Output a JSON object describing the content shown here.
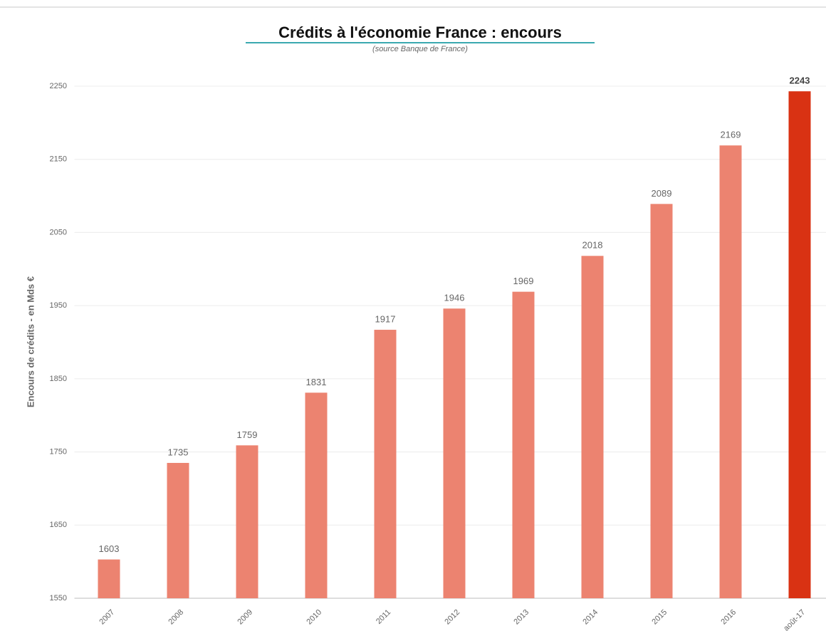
{
  "chart_data": {
    "type": "bar",
    "title": "Crédits à l'économie France : encours",
    "subtitle": "(source Banque de France)",
    "y_label": "Encours de crédits - en Mds €",
    "categories": [
      "2007",
      "2008",
      "2009",
      "2010",
      "2011",
      "2012",
      "2013",
      "2014",
      "2015",
      "2016",
      "août-17"
    ],
    "values": [
      1603,
      1735,
      1759,
      1831,
      1917,
      1946,
      1969,
      2018,
      2089,
      2169,
      2243
    ],
    "colors": [
      "#ec8370",
      "#ec8370",
      "#ec8370",
      "#ec8370",
      "#ec8370",
      "#ec8370",
      "#ec8370",
      "#ec8370",
      "#ec8370",
      "#ec8370",
      "#d93213"
    ],
    "ylim": [
      1550,
      2250
    ],
    "yticks": [
      1550,
      1650,
      1750,
      1850,
      1950,
      2050,
      2150,
      2250
    ],
    "grid": true
  }
}
